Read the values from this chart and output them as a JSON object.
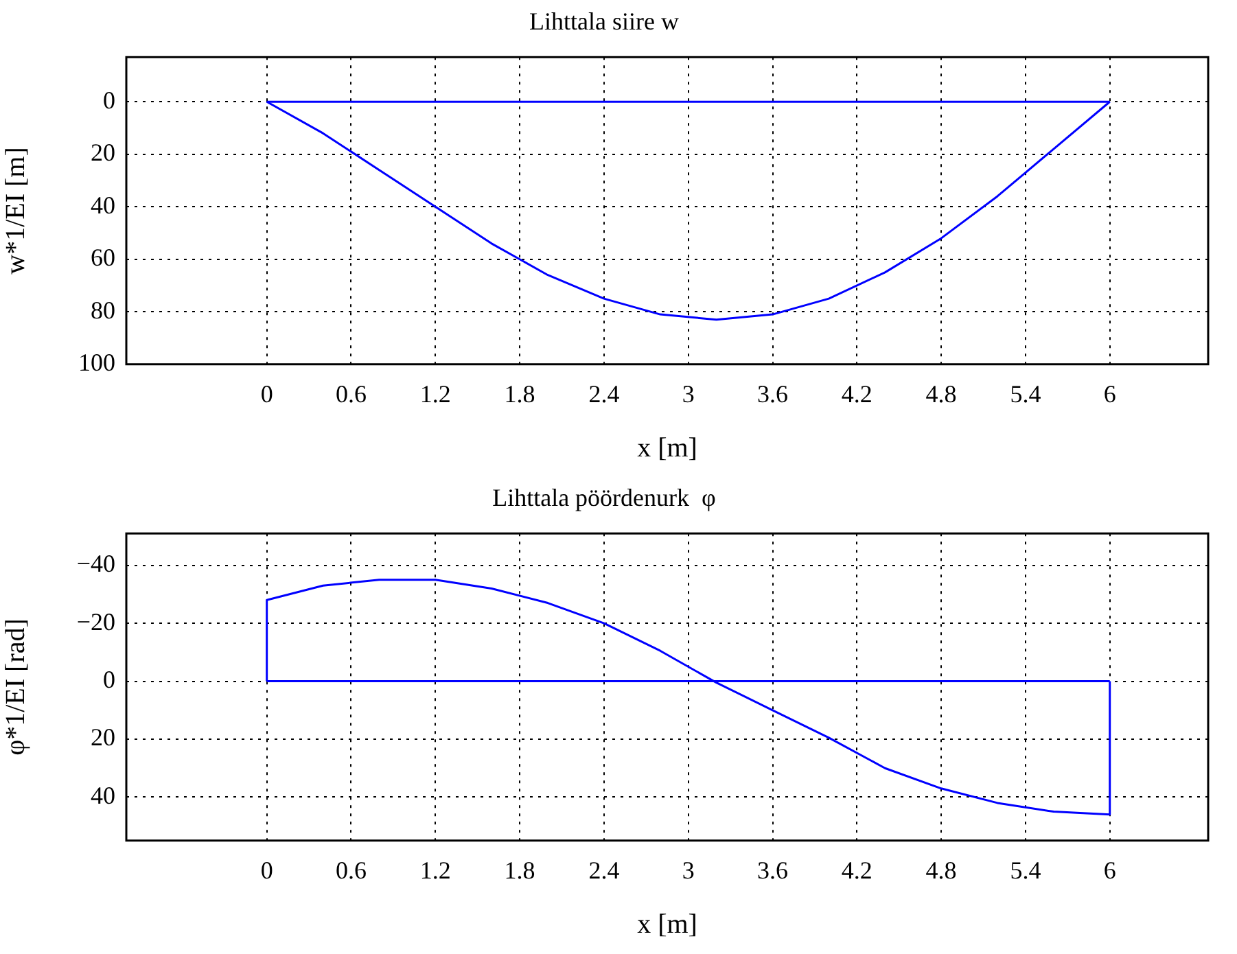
{
  "chart_data": [
    {
      "type": "line",
      "title": "Lihttala siire w",
      "xlabel": "x [m]",
      "ylabel": "w*1/EI [m]",
      "xlim": [
        -1,
        6.7
      ],
      "ylim": [
        100,
        -17
      ],
      "xticks": [
        0,
        0.6,
        1.2,
        1.8,
        2.4,
        3,
        3.6,
        4.2,
        4.8,
        5.4,
        6
      ],
      "yticks": [
        0,
        20,
        40,
        60,
        80,
        100
      ],
      "grid": true,
      "legend": false,
      "series": [
        {
          "color": "#0000ff",
          "x": [
            0,
            0.4,
            0.8,
            1.2,
            1.6,
            2.0,
            2.4,
            2.8,
            3.2,
            3.6,
            4.0,
            4.4,
            4.8,
            5.2,
            5.6,
            6
          ],
          "values": [
            0,
            12,
            26,
            40,
            54,
            66,
            75,
            81,
            83,
            81,
            75,
            65,
            52,
            36,
            18,
            0
          ]
        },
        {
          "color": "#0000ff",
          "x": [
            0,
            6
          ],
          "values": [
            0,
            0
          ]
        }
      ]
    },
    {
      "type": "line",
      "title": "Lihttala pöördenurk  φ",
      "xlabel": "x [m]",
      "ylabel": "φ*1/EI [rad]",
      "xlim": [
        -1,
        6.7
      ],
      "ylim": [
        55,
        -51
      ],
      "xticks": [
        0,
        0.6,
        1.2,
        1.8,
        2.4,
        3,
        3.6,
        4.2,
        4.8,
        5.4,
        6
      ],
      "yticks": [
        -40,
        -20,
        0,
        20,
        40
      ],
      "grid": true,
      "legend": false,
      "series": [
        {
          "color": "#0000ff",
          "x": [
            0,
            0,
            0.4,
            0.8,
            1.2,
            1.6,
            2.0,
            2.4,
            2.8,
            3.2,
            3.6,
            4.0,
            4.4,
            4.8,
            5.2,
            5.6,
            6,
            6
          ],
          "values": [
            0,
            -28,
            -33,
            -35,
            -35,
            -32,
            -27,
            -20,
            -10.5,
            0.5,
            10,
            19.5,
            30,
            37,
            42,
            45,
            46,
            0
          ]
        },
        {
          "color": "#0000ff",
          "x": [
            0,
            6
          ],
          "values": [
            0,
            0
          ]
        }
      ]
    }
  ]
}
